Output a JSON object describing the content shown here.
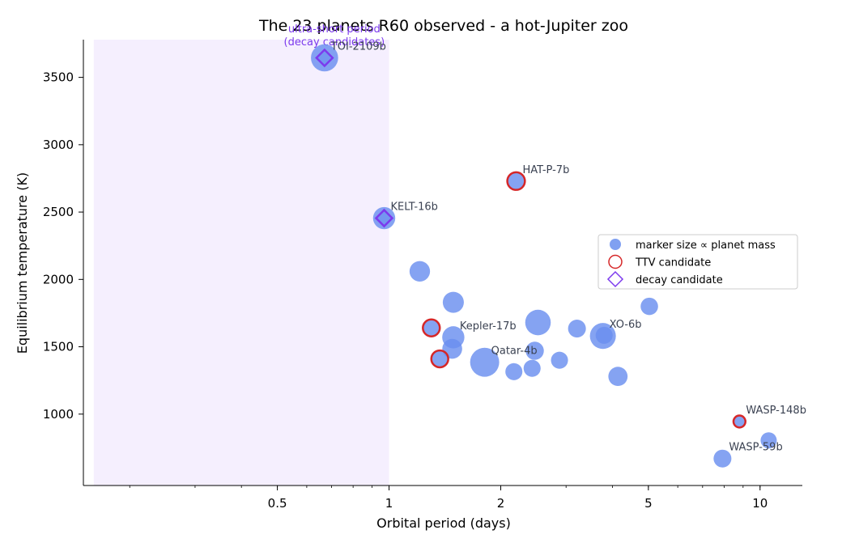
{
  "chart_data": {
    "type": "scatter",
    "title": "The 23 planets R60 observed - a hot-Jupiter zoo",
    "xlabel": "Orbital period (days)",
    "ylabel": "Equilibrium temperature (K)",
    "xscale": "log",
    "xlim": [
      0.15,
      13
    ],
    "ylim": [
      470,
      3780
    ],
    "xticks": [
      {
        "value": 0.5,
        "label": "0.5"
      },
      {
        "value": 1,
        "label": "1"
      },
      {
        "value": 2,
        "label": "2"
      },
      {
        "value": 5,
        "label": "5"
      },
      {
        "value": 10,
        "label": "10"
      }
    ],
    "yticks": [
      {
        "value": 1000,
        "label": "1000"
      },
      {
        "value": 1500,
        "label": "1500"
      },
      {
        "value": 2000,
        "label": "2000"
      },
      {
        "value": 2500,
        "label": "2500"
      },
      {
        "value": 3000,
        "label": "3000"
      },
      {
        "value": 3500,
        "label": "3500"
      }
    ],
    "shaded_region": {
      "x": [
        0.16,
        1.0
      ],
      "label_lines": [
        "ultra-short period",
        "(decay candidates)"
      ]
    },
    "points": [
      {
        "period": 0.67,
        "teq": 3645,
        "mass": 5.0,
        "flag": "decay",
        "label": "TOI-2109b"
      },
      {
        "period": 0.97,
        "teq": 2455,
        "mass": 2.8,
        "flag": "decay",
        "label": "KELT-16b"
      },
      {
        "period": 2.2,
        "teq": 2730,
        "mass": 1.8,
        "flag": "ttv",
        "label": "HAT-P-7b"
      },
      {
        "period": 1.21,
        "teq": 2060,
        "mass": 2.2,
        "flag": null,
        "label": ""
      },
      {
        "period": 1.49,
        "teq": 1830,
        "mass": 2.4,
        "flag": null,
        "label": ""
      },
      {
        "period": 1.3,
        "teq": 1640,
        "mass": 1.6,
        "flag": "ttv",
        "label": ""
      },
      {
        "period": 1.49,
        "teq": 1570,
        "mass": 2.8,
        "flag": null,
        "label": "Kepler-17b"
      },
      {
        "period": 1.48,
        "teq": 1485,
        "mass": 2.0,
        "flag": null,
        "label": ""
      },
      {
        "period": 1.37,
        "teq": 1410,
        "mass": 1.6,
        "flag": "ttv",
        "label": ""
      },
      {
        "period": 1.81,
        "teq": 1385,
        "mass": 6.0,
        "flag": null,
        "label": "Qatar-4b"
      },
      {
        "period": 2.17,
        "teq": 1315,
        "mass": 1.2,
        "flag": null,
        "label": ""
      },
      {
        "period": 2.43,
        "teq": 1340,
        "mass": 1.2,
        "flag": null,
        "label": ""
      },
      {
        "period": 2.47,
        "teq": 1470,
        "mass": 1.5,
        "flag": null,
        "label": ""
      },
      {
        "period": 2.52,
        "teq": 1680,
        "mass": 4.2,
        "flag": null,
        "label": ""
      },
      {
        "period": 2.88,
        "teq": 1400,
        "mass": 1.2,
        "flag": null,
        "label": ""
      },
      {
        "period": 3.21,
        "teq": 1635,
        "mass": 1.4,
        "flag": null,
        "label": ""
      },
      {
        "period": 3.77,
        "teq": 1580,
        "mass": 4.4,
        "flag": null,
        "label": "XO-6b"
      },
      {
        "period": 3.8,
        "teq": 1585,
        "mass": 1.2,
        "flag": null,
        "label": ""
      },
      {
        "period": 4.14,
        "teq": 1280,
        "mass": 1.8,
        "flag": null,
        "label": ""
      },
      {
        "period": 5.03,
        "teq": 1800,
        "mass": 1.3,
        "flag": null,
        "label": ""
      },
      {
        "period": 8.8,
        "teq": 945,
        "mass": 0.5,
        "flag": "ttv",
        "label": "WASP-148b"
      },
      {
        "period": 10.55,
        "teq": 805,
        "mass": 1.0,
        "flag": null,
        "label": ""
      },
      {
        "period": 7.92,
        "teq": 670,
        "mass": 1.4,
        "flag": null,
        "label": "WASP-59b"
      }
    ],
    "legend": {
      "position": "center-right",
      "entries": [
        {
          "marker": "filled-circle",
          "label": "marker size ∝ planet mass"
        },
        {
          "marker": "open-circle",
          "label": "TTV candidate"
        },
        {
          "marker": "open-diamond",
          "label": "decay candidate"
        }
      ]
    },
    "colors": {
      "point_fill": "#6a8fef",
      "ttv_ring": "#d62728",
      "decay_edge": "#7c3aed",
      "shade": "#f5effe"
    },
    "grid": false
  }
}
